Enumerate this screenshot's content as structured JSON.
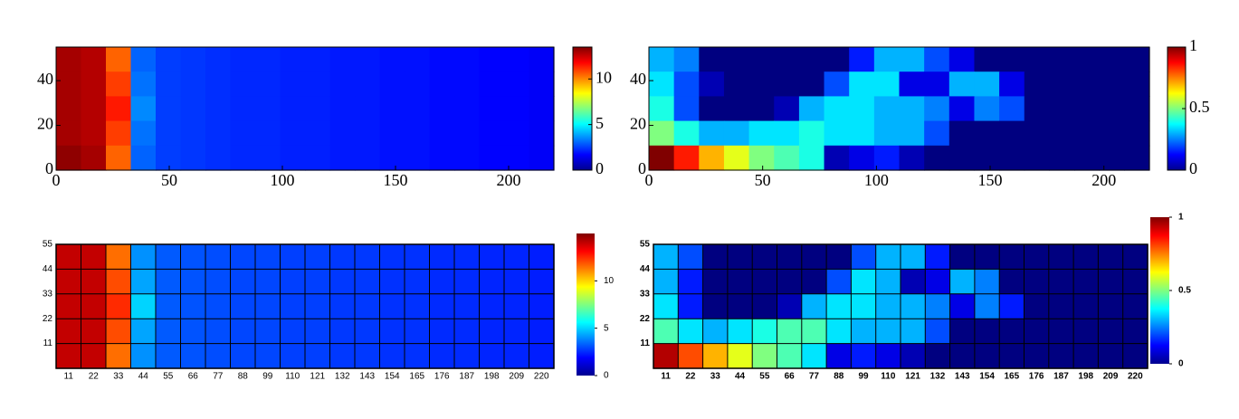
{
  "chart_data": [
    {
      "type": "heatmap",
      "colormap": "jet",
      "grid": false,
      "xlim": [
        0,
        220
      ],
      "ylim": [
        0,
        55
      ],
      "xticks": [
        0,
        50,
        100,
        150,
        200
      ],
      "yticks": [
        0,
        20,
        40
      ],
      "zlim": [
        0,
        13.5
      ],
      "colorbar_ticks": [
        0,
        5,
        10
      ],
      "z": [
        [
          13,
          12.8,
          10.5,
          3,
          2.5,
          2.4,
          2.3,
          2.2,
          2.2,
          2.1,
          2.1,
          2,
          2,
          1.9,
          1.9,
          1.8,
          1.8,
          1.7,
          1.7,
          1.6
        ],
        [
          13,
          12.8,
          11,
          3.2,
          2.5,
          2.4,
          2.3,
          2.2,
          2.2,
          2.1,
          2.1,
          2,
          2,
          1.9,
          1.9,
          1.8,
          1.8,
          1.7,
          1.7,
          1.6
        ],
        [
          13,
          12.8,
          11.5,
          3.5,
          2.5,
          2.4,
          2.3,
          2.2,
          2.2,
          2.1,
          2.1,
          2,
          2,
          1.9,
          1.9,
          1.8,
          1.8,
          1.7,
          1.7,
          1.6
        ],
        [
          13,
          12.8,
          11,
          3.2,
          2.5,
          2.4,
          2.3,
          2.2,
          2.2,
          2.1,
          2.1,
          2,
          2,
          1.9,
          1.9,
          1.8,
          1.8,
          1.7,
          1.7,
          1.6
        ],
        [
          13.3,
          13,
          10.5,
          3,
          2.5,
          2.4,
          2.3,
          2.2,
          2.2,
          2.1,
          2.1,
          2,
          2,
          1.9,
          1.9,
          1.8,
          1.8,
          1.7,
          1.7,
          1.6
        ]
      ]
    },
    {
      "type": "heatmap",
      "colormap": "jet",
      "grid": false,
      "xlim": [
        0,
        220
      ],
      "ylim": [
        0,
        55
      ],
      "xticks": [
        0,
        50,
        100,
        150,
        200
      ],
      "yticks": [
        0,
        20,
        40
      ],
      "zlim": [
        0,
        1
      ],
      "colorbar_ticks": [
        0,
        0.5,
        1
      ],
      "z": [
        [
          0.3,
          0.25,
          0,
          0,
          0,
          0,
          0,
          0,
          0.15,
          0.3,
          0.3,
          0.2,
          0.1,
          0,
          0,
          0,
          0,
          0,
          0,
          0
        ],
        [
          0.35,
          0.2,
          0.05,
          0,
          0,
          0,
          0,
          0.2,
          0.35,
          0.35,
          0.1,
          0.1,
          0.3,
          0.3,
          0.1,
          0,
          0,
          0,
          0,
          0
        ],
        [
          0.4,
          0.2,
          0,
          0,
          0,
          0.05,
          0.3,
          0.35,
          0.35,
          0.3,
          0.3,
          0.25,
          0.1,
          0.25,
          0.2,
          0,
          0,
          0,
          0,
          0
        ],
        [
          0.5,
          0.4,
          0.3,
          0.3,
          0.35,
          0.35,
          0.4,
          0.35,
          0.35,
          0.3,
          0.3,
          0.2,
          0,
          0,
          0,
          0,
          0,
          0,
          0,
          0
        ],
        [
          1,
          0.85,
          0.7,
          0.6,
          0.5,
          0.45,
          0.4,
          0.05,
          0.1,
          0.15,
          0.05,
          0,
          0,
          0,
          0,
          0,
          0,
          0,
          0,
          0
        ]
      ]
    },
    {
      "type": "heatmap",
      "colormap": "jet",
      "grid": true,
      "xlim": [
        0,
        220
      ],
      "ylim": [
        0,
        55
      ],
      "xticks": [
        11,
        22,
        33,
        44,
        55,
        66,
        77,
        88,
        99,
        110,
        121,
        132,
        143,
        154,
        165,
        176,
        187,
        198,
        209,
        220
      ],
      "yticks": [
        11,
        22,
        33,
        44,
        55
      ],
      "zlim": [
        0,
        15
      ],
      "colorbar_ticks": [
        0,
        5,
        10
      ],
      "z": [
        [
          14,
          14,
          11.5,
          4,
          3.2,
          3.1,
          3,
          2.9,
          2.9,
          2.8,
          2.8,
          2.7,
          2.7,
          2.6,
          2.6,
          2.5,
          2.5,
          2.4,
          2.4,
          2.3
        ],
        [
          14,
          14,
          12,
          4.3,
          3.2,
          3.1,
          3,
          2.9,
          2.9,
          2.8,
          2.8,
          2.7,
          2.7,
          2.6,
          2.6,
          2.5,
          2.5,
          2.4,
          2.4,
          2.3
        ],
        [
          14,
          14,
          12.5,
          5,
          3.2,
          3.1,
          3,
          2.9,
          2.9,
          2.8,
          2.8,
          2.7,
          2.7,
          2.6,
          2.6,
          2.5,
          2.5,
          2.4,
          2.4,
          2.3
        ],
        [
          14,
          14,
          12,
          4.3,
          3.2,
          3.1,
          3,
          2.9,
          2.9,
          2.8,
          2.8,
          2.7,
          2.7,
          2.6,
          2.6,
          2.5,
          2.5,
          2.4,
          2.4,
          2.3
        ],
        [
          14,
          14,
          11.5,
          4,
          3.2,
          3.1,
          3,
          2.9,
          2.9,
          2.8,
          2.8,
          2.7,
          2.7,
          2.6,
          2.6,
          2.5,
          2.5,
          2.4,
          2.4,
          2.3
        ]
      ]
    },
    {
      "type": "heatmap",
      "colormap": "jet",
      "grid": true,
      "xlim": [
        0,
        220
      ],
      "ylim": [
        0,
        55
      ],
      "xticks": [
        11,
        22,
        33,
        44,
        55,
        66,
        77,
        88,
        99,
        110,
        121,
        132,
        143,
        154,
        165,
        176,
        187,
        198,
        209,
        220
      ],
      "yticks": [
        11,
        22,
        33,
        44,
        55
      ],
      "zlim": [
        0,
        1
      ],
      "colorbar_ticks": [
        0,
        0.5,
        1
      ],
      "z": [
        [
          0.3,
          0.2,
          0,
          0,
          0,
          0,
          0,
          0,
          0.2,
          0.3,
          0.3,
          0.15,
          0,
          0,
          0,
          0,
          0,
          0,
          0,
          0
        ],
        [
          0.3,
          0.15,
          0,
          0,
          0,
          0,
          0,
          0.2,
          0.35,
          0.3,
          0.05,
          0.1,
          0.3,
          0.25,
          0,
          0,
          0,
          0,
          0,
          0
        ],
        [
          0.35,
          0.15,
          0,
          0,
          0,
          0.05,
          0.3,
          0.35,
          0.35,
          0.3,
          0.3,
          0.25,
          0.1,
          0.25,
          0.15,
          0,
          0,
          0,
          0,
          0
        ],
        [
          0.45,
          0.35,
          0.3,
          0.35,
          0.4,
          0.45,
          0.45,
          0.35,
          0.3,
          0.3,
          0.3,
          0.2,
          0,
          0,
          0,
          0,
          0,
          0,
          0,
          0
        ],
        [
          0.95,
          0.8,
          0.7,
          0.6,
          0.5,
          0.45,
          0.35,
          0.1,
          0.15,
          0.1,
          0.05,
          0,
          0,
          0,
          0,
          0,
          0,
          0,
          0,
          0
        ]
      ]
    }
  ]
}
